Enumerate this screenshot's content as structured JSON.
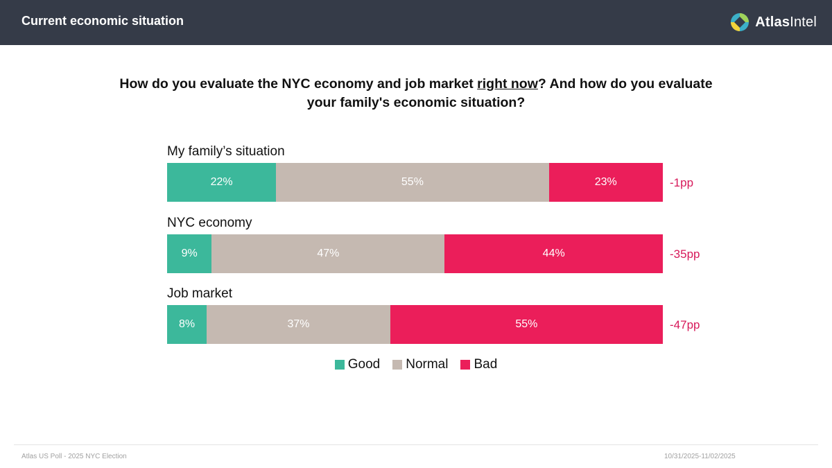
{
  "header": {
    "title": "Current economic situation",
    "brand": {
      "name_bold": "Atlas",
      "name_regular": "Intel"
    }
  },
  "question": {
    "part1": "How do you evaluate the NYC economy and job market ",
    "underlined": "right now",
    "part2": "? And how do you evaluate your family's economic situation?"
  },
  "colors": {
    "good": "#3cb89b",
    "normal": "#c5b9b1",
    "bad": "#eb1e5a",
    "net": "#d7195a",
    "header_bg": "#353b48"
  },
  "chart_data": {
    "type": "bar",
    "orientation": "horizontal-stacked-100",
    "title": "How do you evaluate the NYC economy and job market right now? And how do you evaluate your family's economic situation?",
    "series_names": [
      "Good",
      "Normal",
      "Bad"
    ],
    "categories": [
      "My family’s situation",
      "NYC economy",
      "Job market"
    ],
    "series": [
      {
        "name": "Good",
        "values": [
          22,
          9,
          8
        ]
      },
      {
        "name": "Normal",
        "values": [
          55,
          47,
          37
        ]
      },
      {
        "name": "Bad",
        "values": [
          23,
          44,
          55
        ]
      }
    ],
    "rows": [
      {
        "label": "My family’s situation",
        "good": 22,
        "normal": 55,
        "bad": 23,
        "good_label": "22%",
        "normal_label": "55%",
        "bad_label": "23%",
        "net": "-1pp"
      },
      {
        "label": "NYC economy",
        "good": 9,
        "normal": 47,
        "bad": 44,
        "good_label": "9%",
        "normal_label": "47%",
        "bad_label": "44%",
        "net": "-35pp"
      },
      {
        "label": "Job market",
        "good": 8,
        "normal": 37,
        "bad": 55,
        "good_label": "8%",
        "normal_label": "37%",
        "bad_label": "55%",
        "net": "-47pp"
      }
    ],
    "legend": [
      "Good",
      "Normal",
      "Bad"
    ],
    "legend_position": "bottom-center",
    "xlim": [
      0,
      100
    ]
  },
  "footer": {
    "left": "Atlas US Poll - 2025 NYC Election",
    "right": "10/31/2025-11/02/2025"
  }
}
